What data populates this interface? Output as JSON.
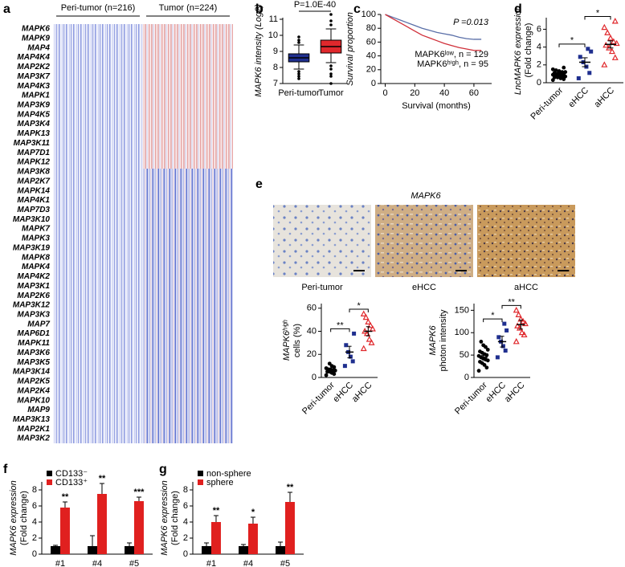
{
  "chart_data": [
    {
      "type": "heatmap",
      "panel": "a",
      "groups": [
        "Peri-tumor (n=216)",
        "Tumor (n=224)"
      ],
      "genes": [
        "MAPK6",
        "MAPK9",
        "MAP4",
        "MAP4K4",
        "MAP2K2",
        "MAP3K7",
        "MAP4K3",
        "MAPK1",
        "MAP3K9",
        "MAP4K5",
        "MAP3K4",
        "MAPK13",
        "MAP3K11",
        "MAP7D1",
        "MAPK12",
        "MAP3K8",
        "MAP2K7",
        "MAPK14",
        "MAP4K1",
        "MAP7D3",
        "MAP3K10",
        "MAPK7",
        "MAPK3",
        "MAP3K19",
        "MAPK8",
        "MAPK4",
        "MAP4K2",
        "MAP3K1",
        "MAP2K6",
        "MAP3K12",
        "MAP3K3",
        "MAP7",
        "MAP6D1",
        "MAPK11",
        "MAP3K6",
        "MAP3K5",
        "MAP3K14",
        "MAP2K5",
        "MAP2K4",
        "MAPK10",
        "MAP9",
        "MAP3K13",
        "MAP2K1",
        "MAP3K2"
      ]
    },
    {
      "type": "box",
      "panel": "b",
      "annotation": "P=1.0E-40",
      "ylabel": [
        "MAPK6 intensity (Log2)"
      ],
      "categories": [
        "Peri-tumor",
        "Tumor"
      ],
      "colors": [
        "#1f2f8f",
        "#e0282c"
      ],
      "whisker_low": [
        7.9,
        8.3
      ],
      "q1": [
        8.35,
        8.9
      ],
      "median": [
        8.6,
        9.3
      ],
      "q3": [
        8.85,
        9.7
      ],
      "whisker_high": [
        9.4,
        10.4
      ],
      "outliers": [
        [
          7.75,
          7.6,
          7.45,
          7.3,
          9.55,
          9.7,
          9.9
        ],
        [
          8.1,
          7.9,
          7.6,
          7.45,
          7.0,
          10.65,
          10.9,
          11.3
        ]
      ],
      "ylim": [
        7,
        11.1
      ],
      "yticks": [
        7,
        8,
        9,
        10,
        11
      ]
    },
    {
      "type": "line",
      "panel": "c",
      "annotation": "P =0.013",
      "ylabel": [
        "Survival proportion"
      ],
      "xlabel": "Survival (months)",
      "x": [
        0,
        5,
        10,
        15,
        20,
        25,
        30,
        35,
        40,
        45,
        50,
        55,
        60,
        65
      ],
      "series": [
        {
          "name": "MAPK6ˡᵒʷ, n = 129",
          "color": "#5a6fa8",
          "values": [
            100,
            96,
            92,
            88,
            84,
            80,
            77,
            74,
            72,
            70,
            67,
            65,
            64,
            64
          ]
        },
        {
          "name": "MAPK6ʰⁱᵍʰ, n = 95",
          "color": "#d0303a",
          "values": [
            100,
            94,
            88,
            82,
            76,
            70,
            66,
            62,
            58,
            55,
            52,
            50,
            48,
            48
          ]
        }
      ],
      "xlim": [
        -3,
        72
      ],
      "xticks": [
        0,
        20,
        40,
        60
      ],
      "ylim": [
        0,
        100
      ],
      "yticks": [
        0,
        20,
        40,
        60,
        80,
        100
      ]
    },
    {
      "type": "dot",
      "panel": "d",
      "ylabel": [
        "LncMAPK6 expression",
        "(Fold change)"
      ],
      "categories": [
        "Peri-tumor",
        "eHCC",
        "aHCC"
      ],
      "colors": [
        "#000000",
        "#1f2f8f",
        "#e0282c"
      ],
      "markers": [
        "circle",
        "square",
        "triangle"
      ],
      "points": [
        [
          0.3,
          0.4,
          0.5,
          0.6,
          0.6,
          0.7,
          0.7,
          0.8,
          0.8,
          0.9,
          0.9,
          1.0,
          1.0,
          1.1,
          1.2,
          1.2,
          1.3,
          1.4,
          1.5,
          1.7
        ],
        [
          0.5,
          1.1,
          1.8,
          2.3,
          2.9,
          3.5,
          3.8
        ],
        [
          2.0,
          2.8,
          3.5,
          3.9,
          4.2,
          4.4,
          4.6,
          5.0,
          5.6,
          6.2,
          6.9
        ]
      ],
      "means": [
        0.9,
        2.3,
        4.3
      ],
      "errors": [
        0.1,
        0.5,
        0.4
      ],
      "significance": [
        "*",
        "*"
      ],
      "ylim": [
        0,
        7.3
      ],
      "yticks": [
        0,
        2,
        4,
        6
      ]
    },
    {
      "type": "images",
      "panel": "e",
      "title": "MAPK6",
      "labels": [
        "Peri-tumor",
        "eHCC",
        "aHCC"
      ]
    },
    {
      "type": "dot",
      "ylabel": [
        "MAPK6ʰⁱᵍʰ",
        "cells (%)"
      ],
      "categories": [
        "Peri-tumor",
        "eHCC",
        "aHCC"
      ],
      "colors": [
        "#000000",
        "#1f2f8f",
        "#e0282c"
      ],
      "markers": [
        "circle",
        "square",
        "triangle"
      ],
      "points": [
        [
          2,
          3,
          4,
          5,
          5,
          6,
          6,
          7,
          7,
          8,
          9,
          10,
          12
        ],
        [
          10,
          14,
          18,
          22,
          28,
          38
        ],
        [
          25,
          30,
          33,
          38,
          40,
          42,
          45,
          48,
          52,
          55
        ]
      ],
      "means": [
        6.5,
        22,
        40
      ],
      "errors": [
        1,
        5,
        4
      ],
      "significance": [
        "**",
        "*"
      ],
      "ylim": [
        0,
        64
      ],
      "yticks": [
        0,
        20,
        40,
        60
      ]
    },
    {
      "type": "dot",
      "ylabel": [
        "MAPK6",
        "photon intensity"
      ],
      "categories": [
        "Peri-tumor",
        "eHCC",
        "aHCC"
      ],
      "colors": [
        "#000000",
        "#1f2f8f",
        "#e0282c"
      ],
      "markers": [
        "circle",
        "square",
        "triangle"
      ],
      "points": [
        [
          15,
          22,
          28,
          32,
          35,
          38,
          40,
          42,
          45,
          48,
          50,
          52,
          55,
          58,
          62,
          68,
          72,
          80
        ],
        [
          45,
          60,
          70,
          80,
          90,
          105,
          120
        ],
        [
          80,
          95,
          100,
          110,
          115,
          120,
          125,
          130,
          140,
          150
        ]
      ],
      "means": [
        45,
        80,
        118
      ],
      "errors": [
        4,
        12,
        10
      ],
      "significance": [
        "*",
        "**"
      ],
      "ylim": [
        0,
        165
      ],
      "yticks": [
        0,
        50,
        100,
        150
      ]
    },
    {
      "type": "bar",
      "panel": "f",
      "ylabel": [
        "MAPK6 expression",
        "(Fold change)"
      ],
      "categories": [
        "#1",
        "#4",
        "#5"
      ],
      "series": [
        {
          "name": "CD133⁻",
          "color": "#000000",
          "values": [
            1,
            1,
            1
          ],
          "errors": [
            0.1,
            1.3,
            0.4
          ]
        },
        {
          "name": "CD133⁺",
          "color": "#e0201f",
          "values": [
            5.8,
            7.5,
            6.6
          ],
          "errors": [
            0.7,
            1.3,
            0.5
          ],
          "significance": [
            "**",
            "**",
            "***"
          ]
        }
      ],
      "ylim": [
        0,
        9
      ],
      "yticks": [
        0,
        2,
        4,
        6,
        8
      ]
    },
    {
      "type": "bar",
      "panel": "g",
      "ylabel": [
        "MAPK6 expression",
        "(Fold change)"
      ],
      "categories": [
        "#1",
        "#4",
        "#5"
      ],
      "series": [
        {
          "name": "non-sphere",
          "color": "#000000",
          "values": [
            1,
            1,
            1
          ],
          "errors": [
            0.4,
            0.2,
            0.5
          ]
        },
        {
          "name": "sphere",
          "color": "#e0201f",
          "values": [
            4.0,
            3.8,
            6.5
          ],
          "errors": [
            0.8,
            0.8,
            1.2
          ],
          "significance": [
            "**",
            "*",
            "**"
          ]
        }
      ],
      "ylim": [
        0,
        9
      ],
      "yticks": [
        0,
        2,
        4,
        6,
        8
      ]
    }
  ]
}
